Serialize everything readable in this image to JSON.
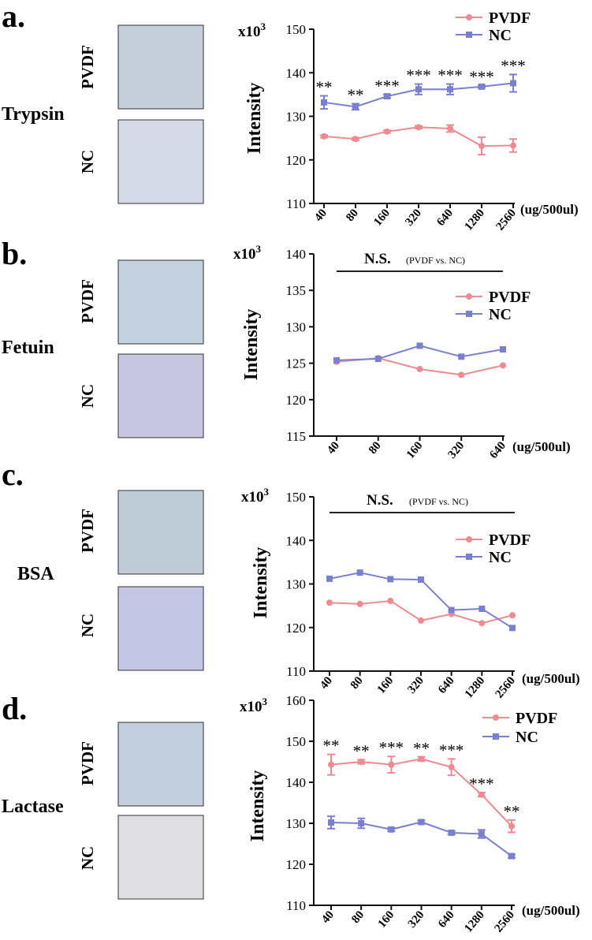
{
  "colors": {
    "pvdf": "#f08a92",
    "nc": "#7a7fd0",
    "axis": "#111111",
    "bar": "#222222"
  },
  "units_label": "(ug/500ul)",
  "panels": [
    {
      "id": "a",
      "letter": "a.",
      "protein": "Trypsin",
      "rows": [
        {
          "label": "PVDF",
          "swatch": "#c6cedb"
        },
        {
          "label": "NC",
          "swatch": "#d6dae6"
        }
      ],
      "ylabel": "Intensity",
      "multiplier": "x10",
      "multiplier_exp": "3",
      "ylim": [
        110,
        150
      ],
      "yticks": [
        110,
        120,
        130,
        140,
        150
      ],
      "categories": [
        "40",
        "80",
        "160",
        "320",
        "640",
        "1280",
        "2560"
      ],
      "series": [
        {
          "name": "PVDF",
          "color": "#f08a92",
          "marker": "circle",
          "values": [
            125.4,
            124.8,
            126.5,
            127.5,
            127.2,
            123.2,
            123.3
          ],
          "errors": [
            0.3,
            0.3,
            0.3,
            0.3,
            0.8,
            2.0,
            1.5
          ]
        },
        {
          "name": "NC",
          "color": "#7a7fd0",
          "marker": "square",
          "values": [
            133.2,
            132.2,
            134.6,
            136.2,
            136.2,
            136.8,
            137.6
          ],
          "errors": [
            1.5,
            0.7,
            0.4,
            1.2,
            1.2,
            0.3,
            2.0
          ]
        }
      ],
      "significance": [
        "**",
        "**",
        "***",
        "***",
        "***",
        "***",
        "***"
      ],
      "ns_line": null,
      "legend_position": "top-right"
    },
    {
      "id": "b",
      "letter": "b.",
      "protein": "Fetuin",
      "rows": [
        {
          "label": "PVDF",
          "swatch": "#c3d0dd"
        },
        {
          "label": "NC",
          "swatch": "#c8c6e0"
        }
      ],
      "ylabel": "Intensity",
      "multiplier": "x10",
      "multiplier_exp": "3",
      "ylim": [
        115,
        140
      ],
      "yticks": [
        115,
        120,
        125,
        130,
        135,
        140
      ],
      "categories": [
        "40",
        "80",
        "160",
        "320",
        "640"
      ],
      "series": [
        {
          "name": "PVDF",
          "color": "#f08a92",
          "marker": "circle",
          "values": [
            125.2,
            125.7,
            124.2,
            123.4,
            124.7
          ],
          "errors": [
            0,
            0,
            0,
            0,
            0
          ]
        },
        {
          "name": "NC",
          "color": "#7a7fd0",
          "marker": "square",
          "values": [
            125.4,
            125.6,
            127.4,
            125.9,
            126.9
          ],
          "errors": [
            0,
            0,
            0,
            0,
            0
          ]
        }
      ],
      "significance": [],
      "ns_line": {
        "label": "N.S.",
        "note": "(PVDF vs. NC)"
      },
      "legend_position": "right"
    },
    {
      "id": "c",
      "letter": "c.",
      "protein": "BSA",
      "rows": [
        {
          "label": "PVDF",
          "swatch": "#c1ccd9"
        },
        {
          "label": "NC",
          "swatch": "#c6c6e6"
        }
      ],
      "ylabel": "Intensity",
      "multiplier": "x10",
      "multiplier_exp": "3",
      "ylim": [
        110,
        150
      ],
      "yticks": [
        110,
        120,
        130,
        140,
        150
      ],
      "categories": [
        "40",
        "80",
        "160",
        "320",
        "640",
        "1280",
        "2560"
      ],
      "series": [
        {
          "name": "PVDF",
          "color": "#f08a92",
          "marker": "circle",
          "values": [
            125.7,
            125.4,
            126.1,
            121.6,
            123.1,
            121.0,
            122.8
          ],
          "errors": [
            0,
            0,
            0,
            0,
            0,
            0,
            0
          ]
        },
        {
          "name": "NC",
          "color": "#7a7fd0",
          "marker": "square",
          "values": [
            131.2,
            132.6,
            131.1,
            131.0,
            124.0,
            124.3,
            119.9
          ],
          "errors": [
            0,
            0,
            0,
            0,
            0,
            0,
            0
          ]
        }
      ],
      "significance": [],
      "ns_line": {
        "label": "N.S.",
        "note": "(PVDF vs. NC)"
      },
      "legend_position": "right"
    },
    {
      "id": "d",
      "letter": "d.",
      "protein": "Lactase",
      "rows": [
        {
          "label": "PVDF",
          "swatch": "#c3cfdd"
        },
        {
          "label": "NC",
          "swatch": "#dfdfe3"
        }
      ],
      "ylabel": "Intensity",
      "multiplier": "x10",
      "multiplier_exp": "3",
      "ylim": [
        110,
        160
      ],
      "yticks": [
        110,
        120,
        130,
        140,
        150,
        160
      ],
      "categories": [
        "40",
        "80",
        "160",
        "320",
        "640",
        "1280",
        "2560"
      ],
      "series": [
        {
          "name": "PVDF",
          "color": "#f08a92",
          "marker": "circle",
          "values": [
            144.3,
            145.0,
            144.3,
            145.7,
            143.7,
            137.0,
            129.3
          ],
          "errors": [
            2.5,
            0.5,
            2.0,
            0.5,
            2.0,
            0.5,
            1.5
          ]
        },
        {
          "name": "NC",
          "color": "#7a7fd0",
          "marker": "square",
          "values": [
            130.2,
            130.0,
            128.5,
            130.3,
            127.7,
            127.4,
            122.0
          ],
          "errors": [
            1.5,
            1.2,
            0.4,
            0.4,
            0.4,
            1.0,
            0.4
          ]
        }
      ],
      "significance": [
        "**",
        "**",
        "***",
        "**",
        "***",
        "***",
        "**"
      ],
      "ns_line": null,
      "legend_position": "top-right"
    }
  ],
  "chart_data": [
    {
      "type": "line",
      "title": "Trypsin",
      "xlabel": "(ug/500ul)",
      "ylabel": "Intensity (x10^3)",
      "ylim": [
        110,
        150
      ],
      "x": [
        "40",
        "80",
        "160",
        "320",
        "640",
        "1280",
        "2560"
      ],
      "series": [
        {
          "name": "PVDF",
          "values": [
            125.4,
            124.8,
            126.5,
            127.5,
            127.2,
            123.2,
            123.3
          ]
        },
        {
          "name": "NC",
          "values": [
            133.2,
            132.2,
            134.6,
            136.2,
            136.2,
            136.8,
            137.6
          ]
        }
      ]
    },
    {
      "type": "line",
      "title": "Fetuin",
      "xlabel": "(ug/500ul)",
      "ylabel": "Intensity (x10^3)",
      "ylim": [
        115,
        140
      ],
      "x": [
        "40",
        "80",
        "160",
        "320",
        "640"
      ],
      "series": [
        {
          "name": "PVDF",
          "values": [
            125.2,
            125.7,
            124.2,
            123.4,
            124.7
          ]
        },
        {
          "name": "NC",
          "values": [
            125.4,
            125.6,
            127.4,
            125.9,
            126.9
          ]
        }
      ]
    },
    {
      "type": "line",
      "title": "BSA",
      "xlabel": "(ug/500ul)",
      "ylabel": "Intensity (x10^3)",
      "ylim": [
        110,
        150
      ],
      "x": [
        "40",
        "80",
        "160",
        "320",
        "640",
        "1280",
        "2560"
      ],
      "series": [
        {
          "name": "PVDF",
          "values": [
            125.7,
            125.4,
            126.1,
            121.6,
            123.1,
            121.0,
            122.8
          ]
        },
        {
          "name": "NC",
          "values": [
            131.2,
            132.6,
            131.1,
            131.0,
            124.0,
            124.3,
            119.9
          ]
        }
      ]
    },
    {
      "type": "line",
      "title": "Lactase",
      "xlabel": "(ug/500ul)",
      "ylabel": "Intensity (x10^3)",
      "ylim": [
        110,
        160
      ],
      "x": [
        "40",
        "80",
        "160",
        "320",
        "640",
        "1280",
        "2560"
      ],
      "series": [
        {
          "name": "PVDF",
          "values": [
            144.3,
            145.0,
            144.3,
            145.7,
            143.7,
            137.0,
            129.3
          ]
        },
        {
          "name": "NC",
          "values": [
            130.2,
            130.0,
            128.5,
            130.3,
            127.7,
            127.4,
            122.0
          ]
        }
      ]
    }
  ]
}
